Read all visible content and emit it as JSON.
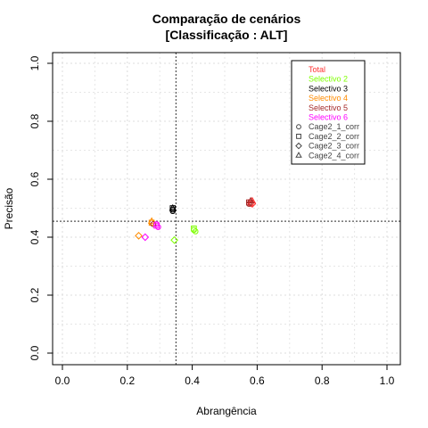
{
  "chart_data": {
    "type": "scatter",
    "title_line1": "Comparação de cenários",
    "title_line2": "[Classificação : ALT]",
    "xlabel": "Abrangência",
    "ylabel": "Precisão",
    "xlim": [
      0,
      1
    ],
    "ylim": [
      0,
      1
    ],
    "xticks": [
      "0.0",
      "0.2",
      "0.4",
      "0.6",
      "0.8",
      "1.0"
    ],
    "yticks": [
      "0.0",
      "0.2",
      "0.4",
      "0.6",
      "0.8",
      "1.0"
    ],
    "grid": true,
    "reference_lines": {
      "vertical_x": 0.35,
      "horizontal_y": 0.455
    },
    "legend_position": "top-right",
    "series_legend": [
      {
        "name": "Total",
        "color": "#ff3333"
      },
      {
        "name": "Selectivo 2",
        "color": "#7fff00"
      },
      {
        "name": "Selectivo 3",
        "color": "#000000"
      },
      {
        "name": "Selectivo 4",
        "color": "#ff8c00"
      },
      {
        "name": "Selectivo 5",
        "color": "#a52a2a"
      },
      {
        "name": "Selectivo 6",
        "color": "#ff00ff"
      }
    ],
    "shape_legend": [
      {
        "name": "Cage2_1_corr",
        "shape": "circle"
      },
      {
        "name": "Cage2_2_corr",
        "shape": "square"
      },
      {
        "name": "Cage2_3_corr",
        "shape": "diamond"
      },
      {
        "name": "Cage2_4_corr",
        "shape": "triangle"
      }
    ],
    "points": [
      {
        "series": "Total",
        "shape": "circle",
        "x": 0.58,
        "y": 0.515
      },
      {
        "series": "Total",
        "shape": "square",
        "x": 0.58,
        "y": 0.52
      },
      {
        "series": "Total",
        "shape": "diamond",
        "x": 0.585,
        "y": 0.515
      },
      {
        "series": "Total",
        "shape": "triangle",
        "x": 0.585,
        "y": 0.525
      },
      {
        "series": "Selectivo 2",
        "shape": "circle",
        "x": 0.405,
        "y": 0.425
      },
      {
        "series": "Selectivo 2",
        "shape": "square",
        "x": 0.405,
        "y": 0.43
      },
      {
        "series": "Selectivo 2",
        "shape": "circle",
        "x": 0.41,
        "y": 0.42
      },
      {
        "series": "Selectivo 2",
        "shape": "diamond",
        "x": 0.345,
        "y": 0.39
      },
      {
        "series": "Selectivo 3",
        "shape": "circle",
        "x": 0.34,
        "y": 0.495
      },
      {
        "series": "Selectivo 3",
        "shape": "square",
        "x": 0.34,
        "y": 0.5
      },
      {
        "series": "Selectivo 3",
        "shape": "triangle",
        "x": 0.34,
        "y": 0.5
      },
      {
        "series": "Selectivo 3",
        "shape": "circle",
        "x": 0.34,
        "y": 0.49
      },
      {
        "series": "Selectivo 4",
        "shape": "circle",
        "x": 0.275,
        "y": 0.45
      },
      {
        "series": "Selectivo 4",
        "shape": "square",
        "x": 0.275,
        "y": 0.45
      },
      {
        "series": "Selectivo 4",
        "shape": "triangle",
        "x": 0.275,
        "y": 0.455
      },
      {
        "series": "Selectivo 4",
        "shape": "diamond",
        "x": 0.235,
        "y": 0.405
      },
      {
        "series": "Selectivo 5",
        "shape": "circle",
        "x": 0.575,
        "y": 0.515
      },
      {
        "series": "Selectivo 5",
        "shape": "square",
        "x": 0.575,
        "y": 0.52
      },
      {
        "series": "Selectivo 5",
        "shape": "triangle",
        "x": 0.58,
        "y": 0.525
      },
      {
        "series": "Selectivo 5",
        "shape": "circle",
        "x": 0.28,
        "y": 0.445
      },
      {
        "series": "Selectivo 6",
        "shape": "circle",
        "x": 0.29,
        "y": 0.445
      },
      {
        "series": "Selectivo 6",
        "shape": "square",
        "x": 0.29,
        "y": 0.44
      },
      {
        "series": "Selectivo 6",
        "shape": "circle",
        "x": 0.295,
        "y": 0.435
      },
      {
        "series": "Selectivo 6",
        "shape": "diamond",
        "x": 0.255,
        "y": 0.4
      }
    ]
  }
}
